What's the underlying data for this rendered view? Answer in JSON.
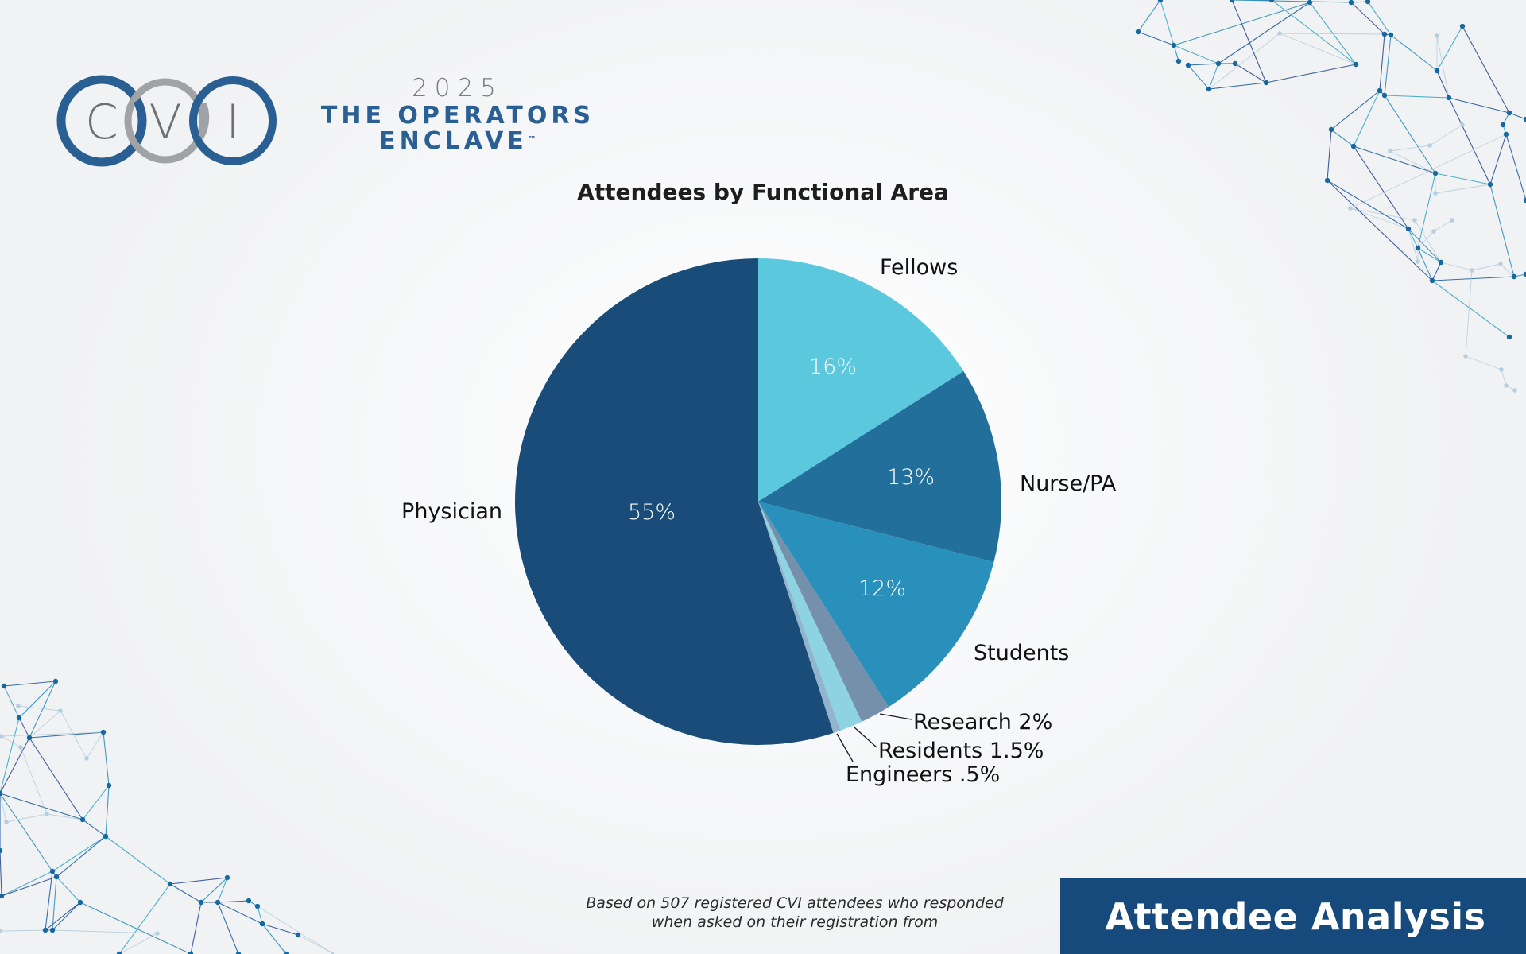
{
  "logo": {
    "letters": [
      "C",
      "V",
      "I"
    ],
    "year": "2025",
    "line1": "THE OPERATORS",
    "line2": "ENCLAVE",
    "trademark": "™",
    "colors": {
      "blue": "#2a5f93",
      "gray": "#a0a2a5",
      "letter": "#6d6f71"
    }
  },
  "chart_data": {
    "type": "pie",
    "title": "Attendees by Functional Area",
    "start_angle": "12 o'clock",
    "direction": "clockwise",
    "slices": [
      {
        "label": "Fellows",
        "value": 16,
        "value_label": "16%",
        "outside_label": "Fellows",
        "color": "#5cc8dd"
      },
      {
        "label": "Nurse/PA",
        "value": 13,
        "value_label": "13%",
        "outside_label": "Nurse/PA",
        "color": "#236f9c"
      },
      {
        "label": "Students",
        "value": 12,
        "value_label": "12%",
        "outside_label": "Students",
        "color": "#2990bc"
      },
      {
        "label": "Research",
        "value": 2,
        "value_label": "",
        "outside_label": "Research 2%",
        "color": "#7590ab"
      },
      {
        "label": "Residents",
        "value": 1.5,
        "value_label": "",
        "outside_label": "Residents 1.5%",
        "color": "#8dd3e2"
      },
      {
        "label": "Engineers",
        "value": 0.5,
        "value_label": "",
        "outside_label": "Engineers .5%",
        "color": "#92b4cc"
      },
      {
        "label": "Physician",
        "value": 55,
        "value_label": "55%",
        "outside_label": "Physician",
        "color": "#194c78"
      }
    ]
  },
  "footnote": {
    "line1": "Based on 507 registered CVI attendees who responded",
    "line2": "when asked on their registration from"
  },
  "banner": {
    "label": "Attendee Analysis",
    "color": "#174a7c"
  }
}
